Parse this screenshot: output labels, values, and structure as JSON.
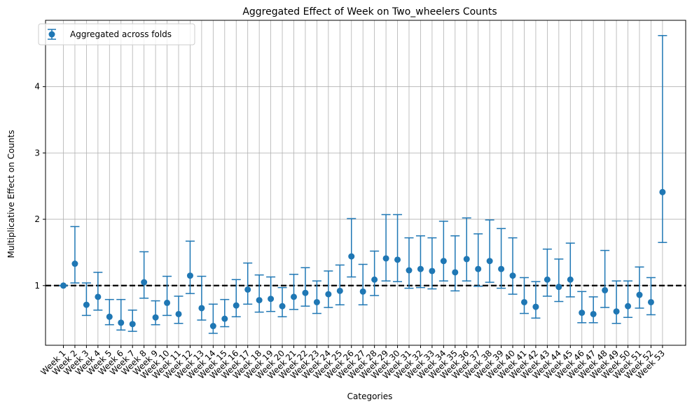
{
  "chart_data": {
    "type": "scatter",
    "title": "Aggregated Effect of Week on Two_wheelers Counts",
    "xlabel": "Categories",
    "ylabel": "Multiplicative Effect on Counts",
    "ylim": [
      0.1,
      5.0
    ],
    "yticks": [
      1,
      2,
      3,
      4
    ],
    "grid": true,
    "legend_position": "upper-left",
    "reference_line": 1,
    "colors": {
      "series": "#1f77b4",
      "reference": "#000000",
      "grid": "#b0b0b0"
    },
    "categories": [
      "Week 1",
      "Week 2",
      "Week 3",
      "Week 4",
      "Week 5",
      "Week 6",
      "Week 7",
      "Week 8",
      "Week 9",
      "Week 10",
      "Week 11",
      "Week 12",
      "Week 13",
      "Week 14",
      "Week 15",
      "Week 16",
      "Week 17",
      "Week 18",
      "Week 19",
      "Week 20",
      "Week 21",
      "Week 22",
      "Week 23",
      "Week 24",
      "Week 25",
      "Week 26",
      "Week 27",
      "Week 28",
      "Week 29",
      "Week 30",
      "Week 31",
      "Week 32",
      "Week 33",
      "Week 34",
      "Week 35",
      "Week 36",
      "Week 37",
      "Week 38",
      "Week 39",
      "Week 40",
      "Week 41",
      "Week 42",
      "Week 43",
      "Week 44",
      "Week 45",
      "Week 46",
      "Week 47",
      "Week 48",
      "Week 49",
      "Week 50",
      "Week 51",
      "Week 52",
      "Week 53"
    ],
    "series": [
      {
        "name": "Aggregated across folds",
        "values": [
          1.0,
          1.33,
          0.71,
          0.83,
          0.53,
          0.44,
          0.42,
          1.05,
          0.52,
          0.74,
          0.57,
          1.15,
          0.66,
          0.39,
          0.5,
          0.7,
          0.94,
          0.78,
          0.8,
          0.69,
          0.83,
          0.89,
          0.75,
          0.87,
          0.92,
          1.44,
          0.91,
          1.09,
          1.41,
          1.39,
          1.23,
          1.25,
          1.22,
          1.37,
          1.2,
          1.4,
          1.25,
          1.37,
          1.25,
          1.15,
          0.75,
          0.68,
          1.09,
          0.98,
          1.09,
          0.59,
          0.57,
          0.93,
          0.61,
          0.69,
          0.86,
          0.75,
          2.41
        ],
        "lower": [
          1.0,
          1.04,
          0.55,
          0.63,
          0.41,
          0.33,
          0.31,
          0.81,
          0.41,
          0.55,
          0.43,
          0.88,
          0.48,
          0.28,
          0.38,
          0.53,
          0.72,
          0.6,
          0.61,
          0.53,
          0.64,
          0.69,
          0.58,
          0.67,
          0.71,
          1.13,
          0.71,
          0.85,
          1.07,
          1.06,
          0.96,
          0.97,
          0.95,
          1.07,
          0.92,
          1.07,
          0.99,
          1.05,
          0.96,
          0.87,
          0.58,
          0.51,
          0.84,
          0.76,
          0.83,
          0.44,
          0.44,
          0.67,
          0.43,
          0.52,
          0.66,
          0.56,
          1.65
        ],
        "upper": [
          1.0,
          1.89,
          1.04,
          1.2,
          0.79,
          0.79,
          0.63,
          1.51,
          0.77,
          1.14,
          0.84,
          1.67,
          1.14,
          0.72,
          0.79,
          1.09,
          1.34,
          1.16,
          1.13,
          0.97,
          1.17,
          1.27,
          1.07,
          1.22,
          1.31,
          2.01,
          1.32,
          1.52,
          2.07,
          2.07,
          1.72,
          1.75,
          1.72,
          1.97,
          1.75,
          2.02,
          1.78,
          1.99,
          1.86,
          1.72,
          1.12,
          1.06,
          1.55,
          1.4,
          1.64,
          0.91,
          0.83,
          1.53,
          1.07,
          1.07,
          1.28,
          1.12,
          4.77
        ]
      }
    ]
  }
}
